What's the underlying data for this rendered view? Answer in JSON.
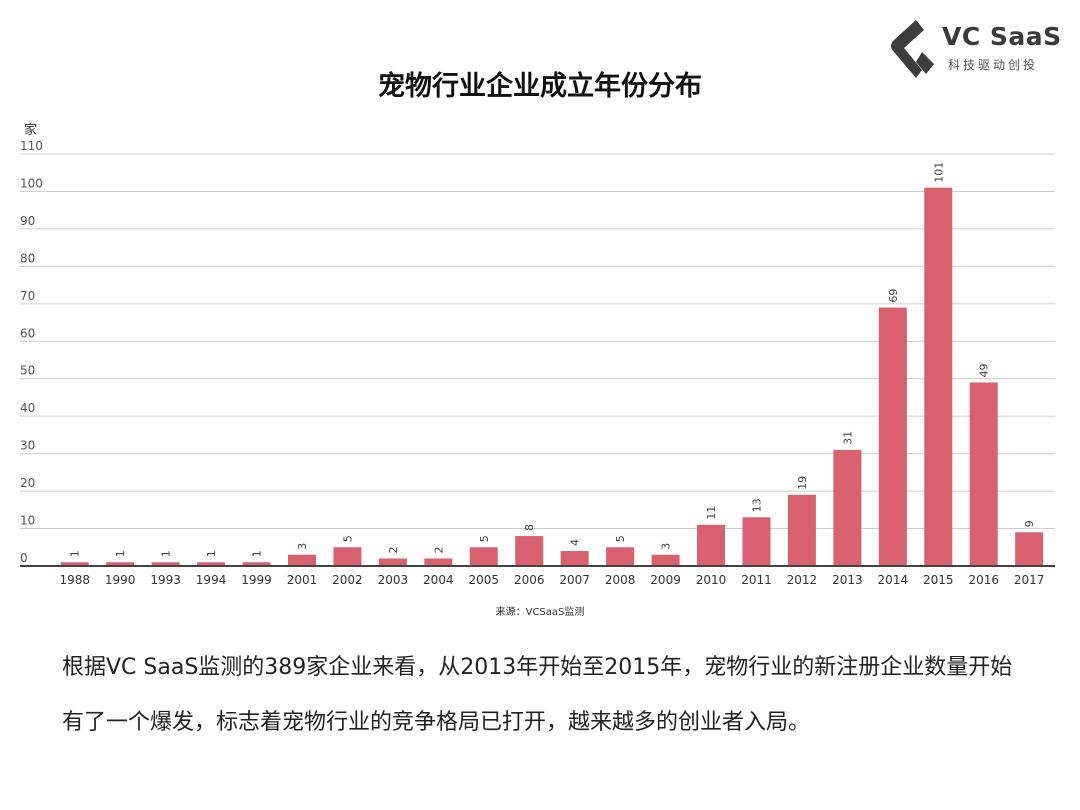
{
  "logo": {
    "name": "VC SaaS",
    "tagline": "科技驱动创投"
  },
  "source": "来源：VCSaaS监测",
  "paragraph": "根据VC SaaS监测的389家企业来看，从2013年开始至2015年，宠物行业的新注册企业数量开始有了一个爆发，标志着宠物行业的竞争格局已打开，越来越多的创业者入局。",
  "colors": {
    "bar": "#d9606f",
    "grid": "#cccccc",
    "axis": "#444444"
  },
  "chart_data": {
    "type": "bar",
    "title": "宠物行业企业成立年份分布",
    "ylabel": "家",
    "xlabel": "",
    "ylim": [
      0,
      110
    ],
    "yticks": [
      0,
      10,
      20,
      30,
      40,
      50,
      60,
      70,
      80,
      90,
      100,
      110
    ],
    "grid": true,
    "categories": [
      "1988",
      "1990",
      "1993",
      "1994",
      "1999",
      "2001",
      "2002",
      "2003",
      "2004",
      "2005",
      "2006",
      "2007",
      "2008",
      "2009",
      "2010",
      "2011",
      "2012",
      "2013",
      "2014",
      "2015",
      "2016",
      "2017"
    ],
    "values": [
      1,
      1,
      1,
      1,
      1,
      3,
      5,
      2,
      2,
      5,
      8,
      4,
      5,
      3,
      11,
      13,
      19,
      31,
      69,
      101,
      49,
      9
    ],
    "data_labels": true
  }
}
